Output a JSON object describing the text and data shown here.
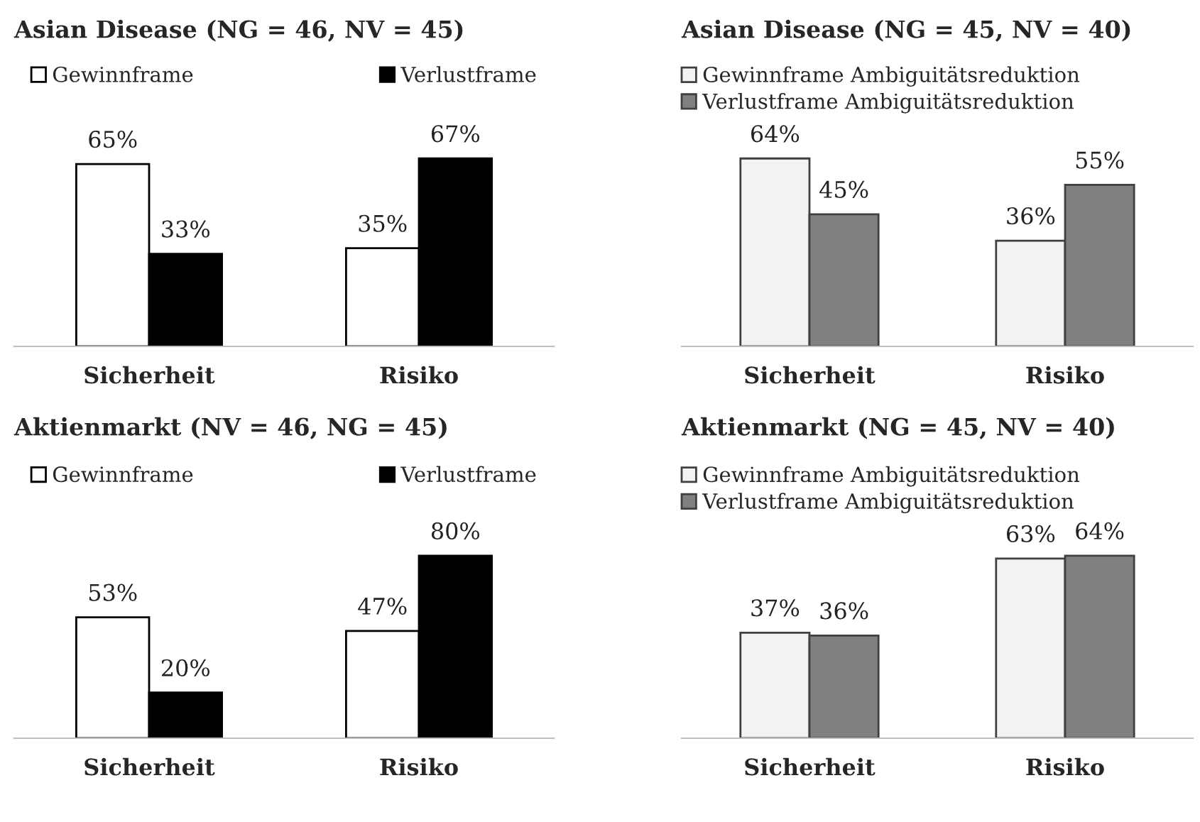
{
  "chart_data": [
    {
      "type": "bar",
      "title": "Asian Disease (NG = 46, NV = 45)",
      "categories": [
        "Sicherheit",
        "Risiko"
      ],
      "legend": "top",
      "series": [
        {
          "name": "Gewinnframe",
          "color": "#ffffff",
          "values": [
            65,
            35
          ],
          "value_labels": [
            "65%",
            "35%"
          ]
        },
        {
          "name": "Verlustframe",
          "color": "#000000",
          "values": [
            33,
            67
          ],
          "value_labels": [
            "33%",
            "67%"
          ]
        }
      ]
    },
    {
      "type": "bar",
      "title": "Asian Disease (NG = 45, NV = 40)",
      "categories": [
        "Sicherheit",
        "Risiko"
      ],
      "legend": "top left",
      "series": [
        {
          "name": "Gewinnframe Ambiguitätsreduktion",
          "color": "#f2f2f2",
          "values": [
            64,
            36
          ],
          "value_labels": [
            "64%",
            "36%"
          ]
        },
        {
          "name": "Verlustframe Ambiguitätsreduktion",
          "color": "#808080",
          "values": [
            45,
            55
          ],
          "value_labels": [
            "45%",
            "55%"
          ]
        }
      ]
    },
    {
      "type": "bar",
      "title": "Aktienmarkt (NV = 46, NG = 45)",
      "categories": [
        "Sicherheit",
        "Risiko"
      ],
      "legend": "top",
      "series": [
        {
          "name": "Gewinnframe",
          "color": "#ffffff",
          "values": [
            53,
            47
          ],
          "value_labels": [
            "53%",
            "47%"
          ]
        },
        {
          "name": "Verlustframe",
          "color": "#000000",
          "values": [
            20,
            80
          ],
          "value_labels": [
            "20%",
            "80%"
          ]
        }
      ]
    },
    {
      "type": "bar",
      "title": "Aktienmarkt (NG = 45, NV = 40)",
      "categories": [
        "Sicherheit",
        "Risiko"
      ],
      "legend": "top left",
      "series": [
        {
          "name": "Gewinnframe Ambiguitätsreduktion",
          "color": "#f2f2f2",
          "values": [
            37,
            63
          ],
          "value_labels": [
            "37%",
            "63%"
          ]
        },
        {
          "name": "Verlustframe Ambiguitätsreduktion",
          "color": "#808080",
          "values": [
            36,
            64
          ],
          "value_labels": [
            "36%",
            "64%"
          ]
        }
      ]
    }
  ]
}
